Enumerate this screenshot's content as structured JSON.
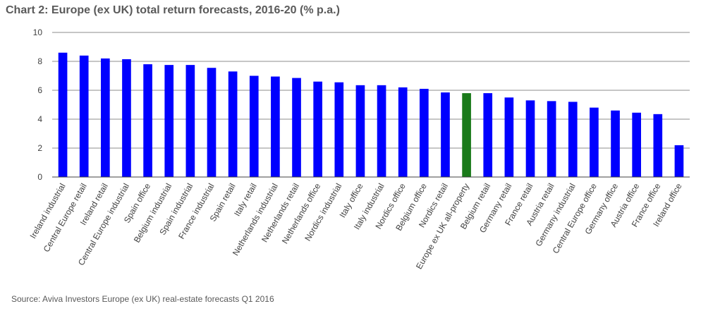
{
  "chart_data": {
    "type": "bar",
    "title": "Chart 2: Europe (ex UK) total return forecasts, 2016-20 (% p.a.)",
    "xlabel": "",
    "ylabel": "",
    "ylim": [
      0,
      10
    ],
    "yticks": [
      0,
      2,
      4,
      6,
      8,
      10
    ],
    "grid": true,
    "legend": "none",
    "categories": [
      "Ireland industrial",
      "Central Europe retail",
      "Ireland retail",
      "Central Europe industrial",
      "Spain office",
      "Belgium industrial",
      "Spain industrial",
      "France industrial",
      "Spain retail",
      "Italy retail",
      "Netherlands industrial",
      "Netherlands retail",
      "Netherlands office",
      "Nordics industrial",
      "Italy office",
      "Italy industrial",
      "Nordics office",
      "Belgium office",
      "Nordics retail",
      "Europe ex UK all-property",
      "Belgium retail",
      "Germany retail",
      "France retail",
      "Austria retail",
      "Germany industrial",
      "Central Europe office",
      "Germany office",
      "Austria office",
      "France office",
      "Ireland office"
    ],
    "values": [
      8.6,
      8.4,
      8.2,
      8.15,
      7.8,
      7.75,
      7.75,
      7.55,
      7.3,
      7.0,
      6.95,
      6.85,
      6.6,
      6.55,
      6.35,
      6.35,
      6.2,
      6.1,
      5.85,
      5.8,
      5.8,
      5.5,
      5.3,
      5.25,
      5.2,
      4.8,
      4.6,
      4.45,
      4.35,
      2.2
    ],
    "colors": {
      "bar": "#0000ff",
      "highlight": "#1a7a1a",
      "grid": "#8c8c8c",
      "axis": "#404040"
    },
    "highlight_category": "Europe ex UK all-property"
  },
  "source": "Source: Aviva Investors Europe (ex UK) real-estate forecasts Q1 2016"
}
